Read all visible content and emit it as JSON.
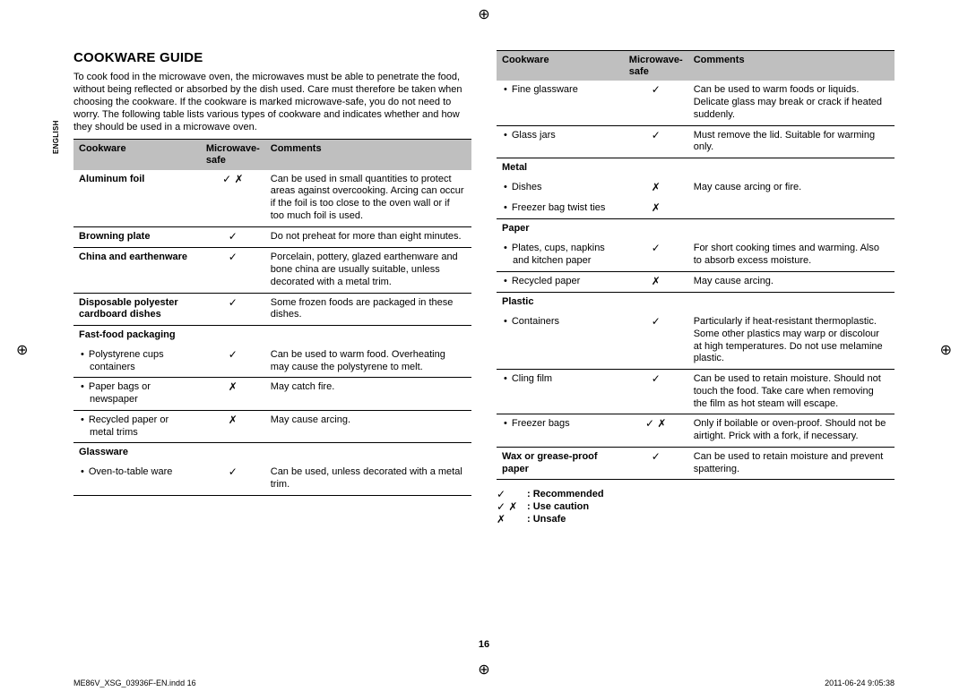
{
  "language_tab": "ENGLISH",
  "heading": "COOKWARE GUIDE",
  "intro": "To cook food in the microwave oven, the microwaves must be able to penetrate the food, without being reflected or absorbed by the dish used. Care must therefore be taken when choosing the cookware. If the cookware is marked microwave-safe, you do not need to worry.\nThe following table lists various types of cookware and indicates whether and how they should be used in a microwave oven.",
  "columns": {
    "cookware": "Cookware",
    "safe": "Microwave-safe",
    "comments": "Comments"
  },
  "symbols": {
    "yes": "✓",
    "no": "✗",
    "caution": "✓ ✗"
  },
  "left_rows": [
    {
      "cw": "Aluminum foil",
      "bold": true,
      "sym": "caution",
      "cm": "Can be used in small quantities to protect areas against overcooking. Arcing can occur if the foil is too close to the oven wall or if too much foil is used."
    },
    {
      "cw": "Browning plate",
      "bold": true,
      "sym": "yes",
      "cm": "Do not preheat for more than eight minutes."
    },
    {
      "cw": "China and earthenware",
      "bold": true,
      "sym": "yes",
      "cm": "Porcelain, pottery, glazed earthenware and bone china are usually suitable, unless decorated with a metal trim."
    },
    {
      "cw": "Disposable polyester cardboard dishes",
      "bold": true,
      "sym": "yes",
      "cm": "Some frozen foods are packaged in these dishes."
    },
    {
      "cw": "Fast-food packaging",
      "bold": true,
      "section": true
    },
    {
      "cw": "Polystyrene cups containers",
      "sub": true,
      "sym": "yes",
      "cm": "Can be used to warm food. Overheating may cause the polystyrene to melt."
    },
    {
      "cw": "Paper bags or newspaper",
      "sub": true,
      "sym": "no",
      "cm": "May catch fire."
    },
    {
      "cw": "Recycled paper or metal trims",
      "sub": true,
      "sym": "no",
      "cm": "May cause arcing."
    },
    {
      "cw": "Glassware",
      "bold": true,
      "section": true
    },
    {
      "cw": "Oven-to-table ware",
      "sub": true,
      "sym": "yes",
      "cm": "Can be used, unless decorated with a metal trim."
    }
  ],
  "right_rows": [
    {
      "cw": "Fine glassware",
      "sub": true,
      "sym": "yes",
      "cm": "Can be used to warm foods or liquids. Delicate glass may break or crack if heated suddenly."
    },
    {
      "cw": "Glass jars",
      "sub": true,
      "sym": "yes",
      "cm": "Must remove the lid. Suitable for warming only."
    },
    {
      "cw": "Metal",
      "bold": true,
      "section": true
    },
    {
      "cw": "Dishes",
      "sub": true,
      "sym": "no",
      "cm": "May cause arcing or fire.",
      "noborder": true
    },
    {
      "cw": "Freezer bag twist ties",
      "sub": true,
      "sym": "no",
      "cm": ""
    },
    {
      "cw": "Paper",
      "bold": true,
      "section": true
    },
    {
      "cw": "Plates, cups, napkins and kitchen paper",
      "sub": true,
      "sym": "yes",
      "cm": "For short cooking times and warming. Also to absorb excess moisture."
    },
    {
      "cw": "Recycled paper",
      "sub": true,
      "sym": "no",
      "cm": "May cause arcing."
    },
    {
      "cw": "Plastic",
      "bold": true,
      "section": true
    },
    {
      "cw": "Containers",
      "sub": true,
      "sym": "yes",
      "cm": "Particularly if heat-resistant thermoplastic. Some other plastics may warp or discolour at high temperatures. Do not use melamine plastic."
    },
    {
      "cw": "Cling film",
      "sub": true,
      "sym": "yes",
      "cm": "Can be used to retain moisture. Should not touch the food. Take care when removing the film as hot steam will escape."
    },
    {
      "cw": "Freezer bags",
      "sub": true,
      "sym": "caution",
      "cm": "Only if boilable or oven-proof. Should not be airtight. Prick with a fork, if necessary."
    },
    {
      "cw": "Wax or grease-proof paper",
      "bold": true,
      "sym": "yes",
      "cm": "Can be used to retain moisture and prevent spattering."
    }
  ],
  "legend": [
    {
      "sym": "yes",
      "label": ": Recommended"
    },
    {
      "sym": "caution",
      "label": ": Use caution"
    },
    {
      "sym": "no",
      "label": ": Unsafe"
    }
  ],
  "page_number": "16",
  "footer_left": "ME86V_XSG_03936F-EN.indd   16",
  "footer_right": "2011-06-24    9:05:38"
}
